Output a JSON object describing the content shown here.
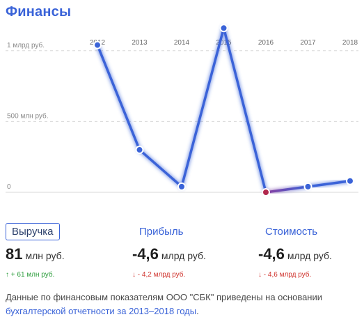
{
  "title": "Финансы",
  "chart_data": {
    "type": "line",
    "categories": [
      "2012",
      "2013",
      "2014",
      "2015",
      "2016",
      "2017",
      "2018"
    ],
    "series": [
      {
        "values": [
          1040,
          300,
          40,
          1160,
          0,
          40,
          80
        ]
      }
    ],
    "ytick_labels": [
      "0",
      "500 млн руб.",
      "1 млрд руб."
    ],
    "ytick_values": [
      0,
      500,
      1000
    ],
    "ylim": [
      0,
      1250
    ],
    "grid": true,
    "colors": {
      "line": "#3a63d8",
      "negative_segment": "#8a3fa0",
      "negative_point": "#b1274d"
    }
  },
  "metrics": [
    {
      "label": "Выручка",
      "value": "81",
      "unit": "млн руб.",
      "change": "↑ + 61 млн руб.",
      "direction": "up",
      "active": true
    },
    {
      "label": "Прибыль",
      "value": "-4,6",
      "unit": "млрд руб.",
      "change": "↓ - 4,2 млрд руб.",
      "direction": "down",
      "active": false
    },
    {
      "label": "Стоимость",
      "value": "-4,6",
      "unit": "млрд руб.",
      "change": "↓ - 4,6 млрд руб.",
      "direction": "down",
      "active": false
    }
  ],
  "note": {
    "text": "Данные по финансовым показателям ООО \"СБК\" приведены на основании ",
    "link": "бухгалтерской отчетности за 2013–2018 годы",
    "end": "."
  }
}
